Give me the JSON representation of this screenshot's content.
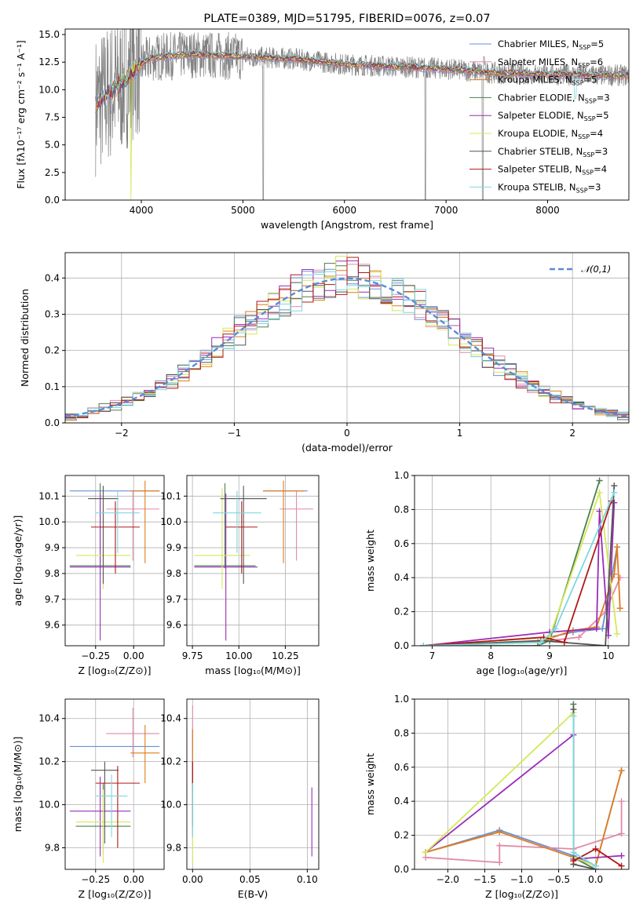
{
  "figure_title": "PLATE=0389, MJD=51795, FIBERID=0076, z=0.07",
  "colors": {
    "Chabrier MILES": "#6b8fd8",
    "Salpeter MILES": "#e08aa8",
    "Kroupa MILES": "#e07b1c",
    "Chabrier ELODIE": "#4d7d50",
    "Salpeter ELODIE": "#9a2cb8",
    "Kroupa ELODIE": "#d4e858",
    "Chabrier STELIB": "#555555",
    "Salpeter STELIB": "#b01818",
    "Kroupa STELIB": "#7fd7e0",
    "data": "#808080"
  },
  "chart_data": [
    {
      "id": "spectrum",
      "type": "line",
      "title": "PLATE=0389, MJD=51795, FIBERID=0076, z=0.07",
      "xlabel": "wavelength [Angstrom, rest frame]",
      "ylabel": "Flux [fλ10⁻¹⁷ erg cm⁻² s⁻¹ A⁻¹]",
      "xlim": [
        3250,
        8800
      ],
      "ylim": [
        0,
        15.5
      ],
      "xticks": [
        "4000",
        "5000",
        "6000",
        "7000",
        "8000"
      ],
      "yticks": [
        "0.0",
        "2.5",
        "5.0",
        "7.5",
        "10.0",
        "12.5",
        "15.0"
      ],
      "legend": [
        {
          "name": "Chabrier MILES",
          "nssp": "5"
        },
        {
          "name": "Salpeter MILES",
          "nssp": "6"
        },
        {
          "name": "Kroupa MILES",
          "nssp": "5"
        },
        {
          "name": "Chabrier ELODIE",
          "nssp": "3"
        },
        {
          "name": "Salpeter ELODIE",
          "nssp": "5"
        },
        {
          "name": "Kroupa ELODIE",
          "nssp": "4"
        },
        {
          "name": "Chabrier STELIB",
          "nssp": "3"
        },
        {
          "name": "Salpeter STELIB",
          "nssp": "4"
        },
        {
          "name": "Kroupa STELIB",
          "nssp": "3"
        }
      ],
      "continuum": [
        [
          3550,
          8.6
        ],
        [
          3650,
          9.5
        ],
        [
          3800,
          10.5
        ],
        [
          3950,
          12.0
        ],
        [
          4100,
          12.9
        ],
        [
          4500,
          13.2
        ],
        [
          5000,
          13.0
        ],
        [
          5500,
          12.8
        ],
        [
          6000,
          12.3
        ],
        [
          6500,
          12.1
        ],
        [
          7000,
          11.9
        ],
        [
          7500,
          11.5
        ],
        [
          8000,
          11.4
        ],
        [
          8500,
          11.3
        ],
        [
          8800,
          11.3
        ]
      ]
    },
    {
      "id": "residuals",
      "type": "step",
      "xlabel": "(data-model)/error",
      "ylabel": "Normed distribution",
      "xlim": [
        -2.5,
        2.5
      ],
      "ylim": [
        0,
        0.47
      ],
      "xticks": [
        "−2",
        "−1",
        "0",
        "1",
        "2"
      ],
      "yticks": [
        "0.0",
        "0.1",
        "0.2",
        "0.3",
        "0.4"
      ],
      "legend": "𝒩(0,1)",
      "reference_curve": "gaussian"
    },
    {
      "id": "age_vs_Z",
      "type": "errorbar",
      "xlabel": "Z [log₁₀(Z/Z⊙)]",
      "ylabel": "age  [log₁₀(age/yr)]",
      "xlim": [
        -0.45,
        0.2
      ],
      "ylim": [
        9.52,
        10.18
      ],
      "xticks": [
        "−0.25",
        "0.00"
      ],
      "yticks": [
        "9.6",
        "9.7",
        "9.8",
        "9.9",
        "10.0",
        "10.1"
      ],
      "points": [
        {
          "model": "Chabrier MILES",
          "x": [
            -0.42,
            0.17
          ],
          "y": 10.12,
          "ye": [
            10.12,
            10.12
          ]
        },
        {
          "model": "Salpeter MILES",
          "x": [
            -0.18,
            0.17
          ],
          "y": 10.05,
          "ye": [
            9.85,
            10.12
          ]
        },
        {
          "model": "Kroupa MILES",
          "x": [
            -0.02,
            0.17
          ],
          "y": 10.12,
          "ye": [
            9.84,
            10.16
          ]
        },
        {
          "model": "Chabrier ELODIE",
          "x": [
            -0.42,
            -0.02
          ],
          "y": 9.83,
          "ye": [
            9.82,
            10.15
          ]
        },
        {
          "model": "Salpeter ELODIE",
          "x": [
            -0.42,
            -0.02
          ],
          "y": 9.825,
          "ye": [
            9.54,
            10.11
          ]
        },
        {
          "model": "Kroupa ELODIE",
          "x": [
            -0.38,
            -0.02
          ],
          "y": 9.87,
          "ye": [
            9.74,
            10.13
          ]
        },
        {
          "model": "Chabrier STELIB",
          "x": [
            -0.3,
            -0.1
          ],
          "y": 10.09,
          "ye": [
            9.76,
            10.14
          ]
        },
        {
          "model": "Salpeter STELIB",
          "x": [
            -0.28,
            0.04
          ],
          "y": 9.98,
          "ye": [
            9.8,
            10.08
          ]
        },
        {
          "model": "Kroupa STELIB",
          "x": [
            -0.25,
            0.04
          ],
          "y": 10.035,
          "ye": [
            9.88,
            10.12
          ]
        }
      ]
    },
    {
      "id": "age_vs_mass",
      "type": "errorbar",
      "xlabel": "mass [log₁₀(M/M⊙)]",
      "ylabel": "",
      "xlim": [
        9.72,
        10.43
      ],
      "ylim": [
        9.52,
        10.18
      ],
      "xticks": [
        "9.75",
        "10.00",
        "10.25"
      ],
      "yticks": [
        "9.6",
        "9.7",
        "9.8",
        "9.9",
        "10.0",
        "10.1"
      ],
      "points": [
        {
          "model": "Chabrier MILES",
          "x": [
            10.13,
            10.37
          ],
          "y": 10.12,
          "ye": [
            10.12,
            10.12
          ]
        },
        {
          "model": "Salpeter MILES",
          "x": [
            10.22,
            10.4
          ],
          "y": 10.05,
          "ye": [
            9.85,
            10.12
          ]
        },
        {
          "model": "Kroupa MILES",
          "x": [
            10.13,
            10.35
          ],
          "y": 10.12,
          "ye": [
            9.84,
            10.16
          ]
        },
        {
          "model": "Chabrier ELODIE",
          "x": [
            9.76,
            10.09
          ],
          "y": 9.83,
          "ye": [
            9.82,
            10.15
          ]
        },
        {
          "model": "Salpeter ELODIE",
          "x": [
            9.76,
            10.1
          ],
          "y": 9.825,
          "ye": [
            9.54,
            10.11
          ]
        },
        {
          "model": "Kroupa ELODIE",
          "x": [
            9.76,
            10.06
          ],
          "y": 9.87,
          "ye": [
            9.74,
            10.13
          ]
        },
        {
          "model": "Chabrier STELIB",
          "x": [
            9.9,
            10.15
          ],
          "y": 10.09,
          "ye": [
            9.76,
            10.14
          ]
        },
        {
          "model": "Salpeter STELIB",
          "x": [
            9.93,
            10.1
          ],
          "y": 9.98,
          "ye": [
            9.8,
            10.08
          ]
        },
        {
          "model": "Kroupa STELIB",
          "x": [
            9.86,
            10.12
          ],
          "y": 10.035,
          "ye": [
            9.88,
            10.12
          ]
        }
      ]
    },
    {
      "id": "weight_vs_age",
      "type": "line",
      "xlabel": "age  [log₁₀(age/yr)]",
      "ylabel": "mass weight",
      "xlim": [
        6.7,
        10.35
      ],
      "ylim": [
        0,
        1.0
      ],
      "xticks": [
        "7",
        "8",
        "9",
        "10"
      ],
      "yticks": [
        "0.0",
        "0.2",
        "0.4",
        "0.6",
        "0.8",
        "1.0"
      ],
      "series": [
        {
          "model": "Chabrier MILES",
          "x": [
            6.85,
            9.0,
            9.4,
            9.9,
            10.15
          ],
          "y": [
            0.0,
            0.05,
            0.08,
            0.1,
            0.58
          ]
        },
        {
          "model": "Salpeter MILES",
          "x": [
            6.85,
            9.0,
            9.5,
            9.95,
            10.2
          ],
          "y": [
            0.0,
            0.03,
            0.05,
            0.2,
            0.4
          ]
        },
        {
          "model": "Kroupa MILES",
          "x": [
            6.85,
            8.8,
            9.4,
            9.8,
            10.1,
            10.15,
            10.2
          ],
          "y": [
            0.0,
            0.02,
            0.09,
            0.11,
            0.42,
            0.58,
            0.22
          ]
        },
        {
          "model": "Chabrier ELODIE",
          "x": [
            6.85,
            8.8,
            9.0,
            9.85
          ],
          "y": [
            0.0,
            0.0,
            0.03,
            0.97
          ]
        },
        {
          "model": "Salpeter ELODIE",
          "x": [
            6.85,
            9.0,
            9.8,
            9.85,
            10.0,
            10.1
          ],
          "y": [
            0.0,
            0.08,
            0.1,
            0.79,
            0.06,
            0.84
          ]
        },
        {
          "model": "Kroupa ELODIE",
          "x": [
            6.85,
            9.0,
            9.85,
            10.15
          ],
          "y": [
            0.0,
            0.05,
            0.9,
            0.07
          ]
        },
        {
          "model": "Chabrier STELIB",
          "x": [
            6.85,
            8.85,
            9.95,
            10.1
          ],
          "y": [
            0.0,
            0.03,
            0.0,
            0.94
          ]
        },
        {
          "model": "Salpeter STELIB",
          "x": [
            6.85,
            8.9,
            9.25,
            10.05
          ],
          "y": [
            0.0,
            0.05,
            0.02,
            0.85
          ]
        },
        {
          "model": "Kroupa STELIB",
          "x": [
            6.85,
            8.85,
            9.1,
            10.1
          ],
          "y": [
            0.0,
            0.02,
            0.1,
            0.9
          ]
        }
      ]
    },
    {
      "id": "mass_vs_Z",
      "type": "errorbar",
      "xlabel": "Z [log₁₀(Z/Z⊙)]",
      "ylabel": "mass [log₁₀(M/M⊙)]",
      "xlim": [
        -0.45,
        0.2
      ],
      "ylim": [
        9.7,
        10.49
      ],
      "xticks": [
        "−0.25",
        "0.00"
      ],
      "yticks": [
        "9.8",
        "10.0",
        "10.2",
        "10.4"
      ],
      "points": [
        {
          "model": "Chabrier MILES",
          "x": [
            -0.42,
            0.17
          ],
          "y": 10.27,
          "ye": [
            10.27,
            10.27
          ]
        },
        {
          "model": "Salpeter MILES",
          "x": [
            -0.18,
            0.17
          ],
          "y": 10.33,
          "ye": [
            10.22,
            10.45
          ]
        },
        {
          "model": "Kroupa MILES",
          "x": [
            -0.02,
            0.17
          ],
          "y": 10.24,
          "ye": [
            10.1,
            10.37
          ]
        },
        {
          "model": "Chabrier ELODIE",
          "x": [
            -0.38,
            -0.02
          ],
          "y": 9.9,
          "ye": [
            9.77,
            10.1
          ]
        },
        {
          "model": "Salpeter ELODIE",
          "x": [
            -0.42,
            -0.02
          ],
          "y": 9.97,
          "ye": [
            9.76,
            10.13
          ]
        },
        {
          "model": "Kroupa ELODIE",
          "x": [
            -0.38,
            -0.02
          ],
          "y": 9.92,
          "ye": [
            9.73,
            10.07
          ]
        },
        {
          "model": "Chabrier STELIB",
          "x": [
            -0.28,
            -0.1
          ],
          "y": 10.16,
          "ye": [
            9.82,
            10.2
          ]
        },
        {
          "model": "Salpeter STELIB",
          "x": [
            -0.25,
            0.04
          ],
          "y": 10.1,
          "ye": [
            9.8,
            10.18
          ]
        },
        {
          "model": "Kroupa STELIB",
          "x": [
            -0.25,
            -0.04
          ],
          "y": 10.04,
          "ye": [
            9.85,
            10.14
          ]
        }
      ]
    },
    {
      "id": "mass_vs_ebv",
      "type": "errorbar",
      "xlabel": "E(B-V)",
      "ylabel": "",
      "xlim": [
        -0.005,
        0.11
      ],
      "ylim": [
        9.7,
        10.49
      ],
      "xticks": [
        "0.00",
        "0.05",
        "0.10"
      ],
      "yticks": [
        "9.8",
        "10.0",
        "10.2",
        "10.4"
      ],
      "points": [
        {
          "model": "Chabrier MILES",
          "x": 0.0,
          "ye": [
            10.2,
            10.35
          ]
        },
        {
          "model": "Salpeter MILES",
          "x": 0.0,
          "ye": [
            10.25,
            10.46
          ]
        },
        {
          "model": "Kroupa MILES",
          "x": 0.0,
          "ye": [
            10.1,
            10.35
          ]
        },
        {
          "model": "Chabrier ELODIE",
          "x": 0.0,
          "ye": [
            9.85,
            10.1
          ]
        },
        {
          "model": "Salpeter ELODIE",
          "x": 0.104,
          "ye": [
            9.76,
            10.08
          ]
        },
        {
          "model": "Kroupa ELODIE",
          "x": 0.0,
          "ye": [
            9.73,
            10.05
          ]
        },
        {
          "model": "Chabrier STELIB",
          "x": 0.0,
          "ye": [
            9.9,
            10.2
          ]
        },
        {
          "model": "Salpeter STELIB",
          "x": 0.0,
          "ye": [
            10.1,
            10.2
          ]
        },
        {
          "model": "Kroupa STELIB",
          "x": 0.0,
          "ye": [
            9.85,
            10.1
          ]
        }
      ]
    },
    {
      "id": "weight_vs_Z",
      "type": "line",
      "xlabel": "Z [log₁₀(Z/Z⊙)]",
      "ylabel": "mass weight",
      "xlim": [
        -2.45,
        0.45
      ],
      "ylim": [
        0,
        1.0
      ],
      "xticks": [
        "−2.0",
        "−1.5",
        "−1.0",
        "−0.5",
        "0.0"
      ],
      "yticks": [
        "0.0",
        "0.2",
        "0.4",
        "0.6",
        "0.8",
        "1.0"
      ],
      "series": [
        {
          "model": "Chabrier MILES",
          "x": [
            -2.3,
            -1.3,
            -0.3,
            0.0,
            0.35
          ],
          "y": [
            0.1,
            0.23,
            0.08,
            0.02,
            0.58
          ]
        },
        {
          "model": "Salpeter MILES",
          "x": [
            -2.3,
            -1.3,
            -1.3,
            -0.3,
            0.35,
            0.35
          ],
          "y": [
            0.07,
            0.04,
            0.14,
            0.12,
            0.21,
            0.4
          ]
        },
        {
          "model": "Kroupa MILES",
          "x": [
            -2.3,
            -1.3,
            -0.3,
            0.0,
            0.35
          ],
          "y": [
            0.1,
            0.22,
            0.07,
            0.02,
            0.58
          ]
        },
        {
          "model": "Chabrier ELODIE",
          "x": [
            -0.3,
            -0.3,
            0.0
          ],
          "y": [
            0.97,
            0.07,
            0.0
          ]
        },
        {
          "model": "Salpeter ELODIE",
          "x": [
            -2.3,
            -0.3,
            -0.3,
            0.35
          ],
          "y": [
            0.1,
            0.79,
            0.06,
            0.08
          ]
        },
        {
          "model": "Kroupa ELODIE",
          "x": [
            -2.3,
            -0.3,
            -0.3,
            0.0
          ],
          "y": [
            0.1,
            0.92,
            0.07,
            0.02
          ]
        },
        {
          "model": "Chabrier STELIB",
          "x": [
            -0.3,
            -0.3,
            0.0
          ],
          "y": [
            0.94,
            0.03,
            0.0
          ]
        },
        {
          "model": "Salpeter STELIB",
          "x": [
            -0.3,
            0.0,
            0.35
          ],
          "y": [
            0.05,
            0.12,
            0.02
          ]
        },
        {
          "model": "Kroupa STELIB",
          "x": [
            -0.3,
            -0.3,
            0.0
          ],
          "y": [
            0.9,
            0.1,
            0.02
          ]
        }
      ]
    }
  ]
}
